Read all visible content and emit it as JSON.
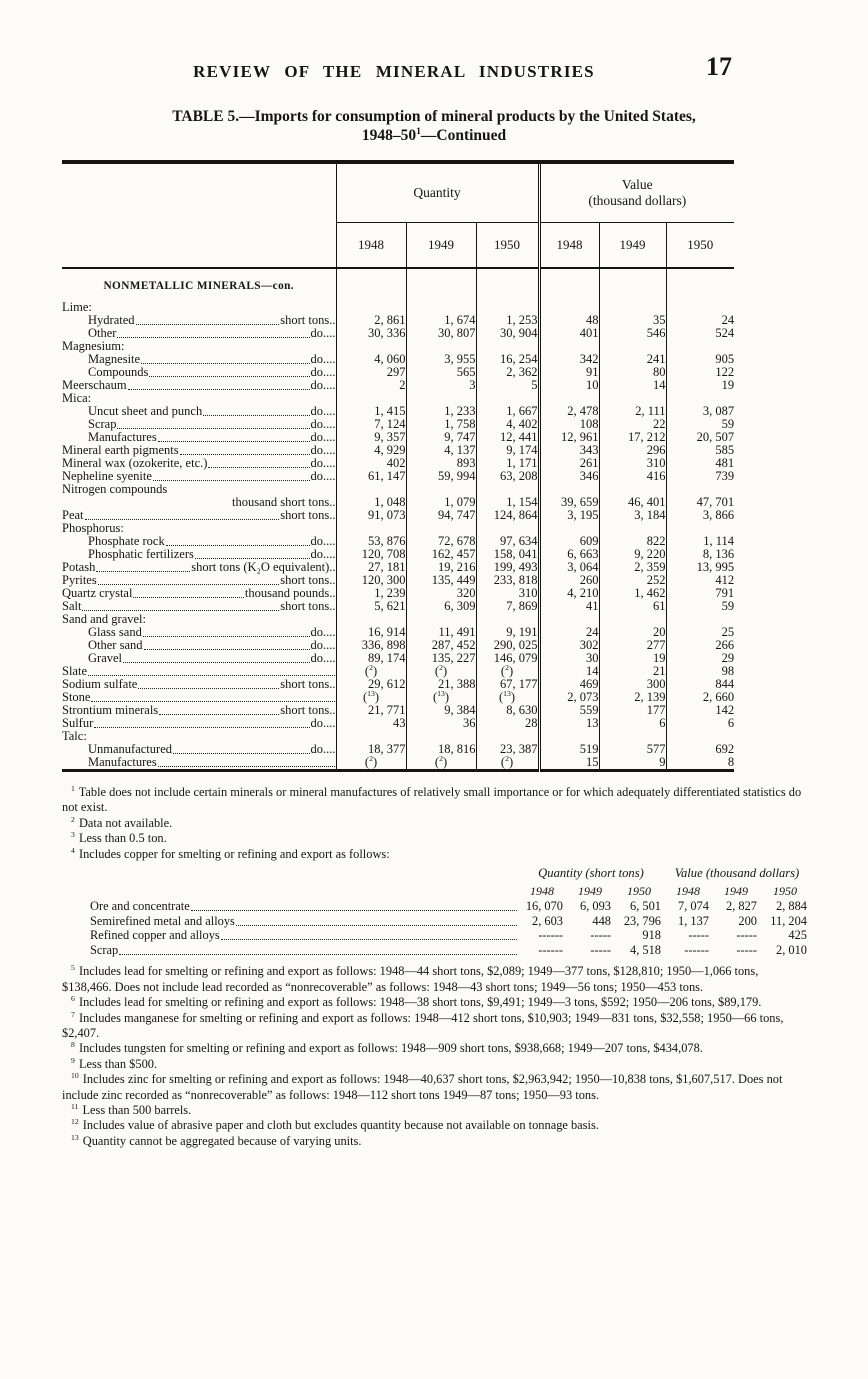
{
  "page": {
    "running_header": "REVIEW OF THE MINERAL INDUSTRIES",
    "page_number": "17",
    "title_line1": "TABLE 5.—Imports for consumption of mineral products by the United States,",
    "title_line2_pre": "1948–50",
    "title_footnote_ref": "1",
    "title_line2_post": "—Continued"
  },
  "table": {
    "quantity_header": "Quantity",
    "value_header_line1": "Value",
    "value_header_line2": "(thousand dollars)",
    "years": [
      "1948",
      "1949",
      "1950",
      "1948",
      "1949",
      "1950"
    ],
    "rows": [
      {
        "type": "section",
        "label": "NONMETALLIC MINERALS—con."
      },
      {
        "type": "group",
        "indent": 0,
        "label": "Lime:"
      },
      {
        "type": "item",
        "indent": 1,
        "label": "Hydrated",
        "unit": "short tons..",
        "values": [
          "2, 861",
          "1, 674",
          "1, 253",
          "48",
          "35",
          "24"
        ]
      },
      {
        "type": "item",
        "indent": 1,
        "label": "Other",
        "unit": "do....",
        "values": [
          "30, 336",
          "30, 807",
          "30, 904",
          "401",
          "546",
          "524"
        ]
      },
      {
        "type": "group",
        "indent": 0,
        "label": "Magnesium:"
      },
      {
        "type": "item",
        "indent": 1,
        "label": "Magnesite",
        "unit": "do....",
        "values": [
          "4, 060",
          "3, 955",
          "16, 254",
          "342",
          "241",
          "905"
        ]
      },
      {
        "type": "item",
        "indent": 1,
        "label": "Compounds",
        "unit": "do....",
        "values": [
          "297",
          "565",
          "2, 362",
          "91",
          "80",
          "122"
        ]
      },
      {
        "type": "item",
        "indent": 0,
        "label": "Meerschaum",
        "unit": "do....",
        "values": [
          "2",
          "3",
          "5",
          "10",
          "14",
          "19"
        ]
      },
      {
        "type": "group",
        "indent": 0,
        "label": "Mica:"
      },
      {
        "type": "item",
        "indent": 1,
        "label": "Uncut sheet and punch",
        "unit": "do....",
        "values": [
          "1, 415",
          "1, 233",
          "1, 667",
          "2, 478",
          "2, 111",
          "3, 087"
        ]
      },
      {
        "type": "item",
        "indent": 1,
        "label": "Scrap",
        "unit": "do....",
        "values": [
          "7, 124",
          "1, 758",
          "4, 402",
          "108",
          "22",
          "59"
        ]
      },
      {
        "type": "item",
        "indent": 1,
        "label": "Manufactures",
        "unit": "do....",
        "values": [
          "9, 357",
          "9, 747",
          "12, 441",
          "12, 961",
          "17, 212",
          "20, 507"
        ]
      },
      {
        "type": "item",
        "indent": 0,
        "label": "Mineral earth pigments",
        "unit": "do....",
        "values": [
          "4, 929",
          "4, 137",
          "9, 174",
          "343",
          "296",
          "585"
        ]
      },
      {
        "type": "item",
        "indent": 0,
        "label": "Mineral wax (ozokerite, etc.)",
        "unit": "do....",
        "values": [
          "402",
          "893",
          "1, 171",
          "261",
          "310",
          "481"
        ]
      },
      {
        "type": "item",
        "indent": 0,
        "label": "Nepheline syenite",
        "unit": "do....",
        "values": [
          "61, 147",
          "59, 994",
          "63, 208",
          "346",
          "416",
          "739"
        ]
      },
      {
        "type": "item2",
        "indent": 0,
        "label": "Nitrogen compounds",
        "unit": "thousand short tons..",
        "values": [
          "1, 048",
          "1, 079",
          "1, 154",
          "39, 659",
          "46, 401",
          "47, 701"
        ]
      },
      {
        "type": "item",
        "indent": 0,
        "label": "Peat",
        "unit": "short tons..",
        "values": [
          "91, 073",
          "94, 747",
          "124, 864",
          "3, 195",
          "3, 184",
          "3, 866"
        ]
      },
      {
        "type": "group",
        "indent": 0,
        "label": "Phosphorus:"
      },
      {
        "type": "item",
        "indent": 1,
        "label": "Phosphate rock",
        "unit": "do....",
        "values": [
          "53, 876",
          "72, 678",
          "97, 634",
          "609",
          "822",
          "1, 114"
        ]
      },
      {
        "type": "item",
        "indent": 1,
        "label": "Phosphatic fertilizers",
        "unit": "do....",
        "values": [
          "120, 708",
          "162, 457",
          "158, 041",
          "6, 663",
          "9, 220",
          "8, 136"
        ]
      },
      {
        "type": "item",
        "indent": 0,
        "label": "Potash",
        "unit": "short tons (K₂O equivalent)..",
        "values": [
          "27, 181",
          "19, 216",
          "199, 493",
          "3, 064",
          "2, 359",
          "13, 995"
        ]
      },
      {
        "type": "item",
        "indent": 0,
        "label": "Pyrites",
        "unit": "short tons..",
        "values": [
          "120, 300",
          "135, 449",
          "233, 818",
          "260",
          "252",
          "412"
        ]
      },
      {
        "type": "item",
        "indent": 0,
        "label": "Quartz crystal",
        "unit": "thousand pounds..",
        "values": [
          "1, 239",
          "320",
          "310",
          "4, 210",
          "1, 462",
          "791"
        ]
      },
      {
        "type": "item",
        "indent": 0,
        "label": "Salt",
        "unit": "short tons..",
        "values": [
          "5, 621",
          "6, 309",
          "7, 869",
          "41",
          "61",
          "59"
        ]
      },
      {
        "type": "group",
        "indent": 0,
        "label": "Sand and gravel:"
      },
      {
        "type": "item",
        "indent": 1,
        "label": "Glass sand",
        "unit": "do....",
        "values": [
          "16, 914",
          "11, 491",
          "9, 191",
          "24",
          "20",
          "25"
        ]
      },
      {
        "type": "item",
        "indent": 1,
        "label": "Other sand",
        "unit": "do....",
        "values": [
          "336, 898",
          "287, 452",
          "290, 025",
          "302",
          "277",
          "266"
        ]
      },
      {
        "type": "item",
        "indent": 1,
        "label": "Gravel",
        "unit": "do....",
        "values": [
          "89, 174",
          "135, 227",
          "146, 079",
          "30",
          "19",
          "29"
        ]
      },
      {
        "type": "item",
        "indent": 0,
        "label": "Slate",
        "unit": "",
        "values": [
          "(2)",
          "(2)",
          "(2)",
          "14",
          "21",
          "98"
        ]
      },
      {
        "type": "item",
        "indent": 0,
        "label": "Sodium sulfate",
        "unit": "short tons..",
        "values": [
          "29, 612",
          "21, 388",
          "67, 177",
          "469",
          "300",
          "844"
        ]
      },
      {
        "type": "item",
        "indent": 0,
        "label": "Stone",
        "unit": "",
        "values": [
          "(13)",
          "(13)",
          "(13)",
          "2, 073",
          "2, 139",
          "2, 660"
        ]
      },
      {
        "type": "item",
        "indent": 0,
        "label": "Strontium minerals",
        "unit": "short tons..",
        "values": [
          "21, 771",
          "9, 384",
          "8, 630",
          "559",
          "177",
          "142"
        ]
      },
      {
        "type": "item",
        "indent": 0,
        "label": "Sulfur",
        "unit": "do....",
        "values": [
          "43",
          "36",
          "28",
          "13",
          "6",
          "6"
        ]
      },
      {
        "type": "group",
        "indent": 0,
        "label": "Talc:"
      },
      {
        "type": "item",
        "indent": 1,
        "label": "Unmanufactured",
        "unit": "do....",
        "values": [
          "18, 377",
          "18, 816",
          "23, 387",
          "519",
          "577",
          "692"
        ]
      },
      {
        "type": "item",
        "indent": 1,
        "label": "Manufactures",
        "unit": "",
        "values": [
          "(2)",
          "(2)",
          "(2)",
          "15",
          "9",
          "8"
        ]
      }
    ]
  },
  "footnotes_top": [
    {
      "n": "1",
      "text": "Table does not include certain minerals or mineral manufactures of relatively small importance or for which adequately differentiated statistics do not exist."
    },
    {
      "n": "2",
      "text": "Data not available."
    },
    {
      "n": "3",
      "text": "Less than 0.5 ton."
    },
    {
      "n": "4",
      "text": "Includes copper for smelting or refining and export as follows:"
    }
  ],
  "copper_table": {
    "quantity_header": "Quantity (short tons)",
    "value_header": "Value (thousand dollars)",
    "years": [
      "1948",
      "1949",
      "1950",
      "1948",
      "1949",
      "1950"
    ],
    "rows": [
      {
        "label": "Ore and concentrate",
        "values": [
          "16, 070",
          "6, 093",
          "6, 501",
          "7, 074",
          "2, 827",
          "2, 884"
        ]
      },
      {
        "label": "Semirefined metal and alloys",
        "values": [
          "2, 603",
          "448",
          "23, 796",
          "1, 137",
          "200",
          "11, 204"
        ]
      },
      {
        "label": "Refined copper and alloys",
        "values": [
          "------",
          "-----",
          "918",
          "-----",
          "-----",
          "425"
        ]
      },
      {
        "label": "Scrap",
        "values": [
          "------",
          "-----",
          "4, 518",
          "------",
          "-----",
          "2, 010"
        ]
      }
    ]
  },
  "footnotes_bottom": [
    {
      "n": "5",
      "text": "Includes lead for smelting or refining and export as follows: 1948—44 short tons, $2,089; 1949—377 tons, $128,810; 1950—1,066 tons, $138,466.  Does not include lead recorded as “nonrecoverable” as follows: 1948—43 short tons; 1949—56 tons; 1950—453 tons."
    },
    {
      "n": "6",
      "text": "Includes lead for smelting or refining and export as follows: 1948—38 short tons, $9,491; 1949—3 tons, $592; 1950—206 tons, $89,179."
    },
    {
      "n": "7",
      "text": "Includes manganese for smelting or refining and export as follows: 1948—412 short tons, $10,903; 1949—831 tons, $32,558; 1950—66 tons, $2,407."
    },
    {
      "n": "8",
      "text": "Includes tungsten for smelting or refining and export as follows: 1948—909 short tons, $938,668; 1949—207 tons, $434,078."
    },
    {
      "n": "9",
      "text": "Less than $500."
    },
    {
      "n": "10",
      "text": "Includes zinc for smelting or refining and export as follows: 1948—40,637 short tons, $2,963,942; 1950—10,838 tons, $1,607,517.  Does not include zinc recorded as “nonrecoverable” as follows: 1948—112 short tons 1949—87 tons; 1950—93 tons."
    },
    {
      "n": "11",
      "text": "Less than 500 barrels."
    },
    {
      "n": "12",
      "text": "Includes value of abrasive paper and cloth but excludes quantity because not available on tonnage basis."
    },
    {
      "n": "13",
      "text": "Quantity cannot be aggregated because of varying units."
    }
  ]
}
